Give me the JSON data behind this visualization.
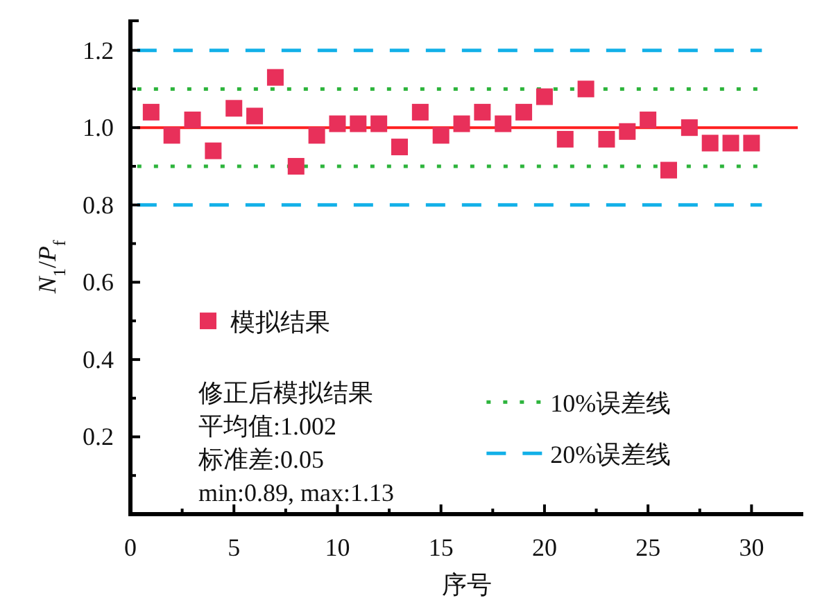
{
  "chart_data": {
    "type": "scatter",
    "xlabel": "序号",
    "ylabel": "*N*$_{1}$/*P*$_{f}$",
    "x": [
      1,
      2,
      3,
      4,
      5,
      6,
      7,
      8,
      9,
      10,
      11,
      12,
      13,
      14,
      15,
      16,
      17,
      18,
      19,
      20,
      21,
      22,
      23,
      24,
      25,
      26,
      27,
      28,
      29,
      30
    ],
    "series": [
      {
        "name": "模拟结果",
        "color": "#e8305a",
        "marker": "square",
        "values": [
          1.04,
          0.98,
          1.02,
          0.94,
          1.05,
          1.03,
          1.13,
          0.9,
          0.98,
          1.01,
          1.01,
          1.01,
          0.95,
          1.04,
          0.98,
          1.01,
          1.04,
          1.01,
          1.04,
          1.08,
          0.97,
          1.1,
          0.97,
          0.99,
          1.02,
          0.89,
          1.0,
          0.96,
          0.96,
          0.96
        ]
      }
    ],
    "xlim": [
      0,
      32.5
    ],
    "ylim": [
      0,
      1.28
    ],
    "xticks": [
      0,
      5,
      10,
      15,
      20,
      25,
      30
    ],
    "yticks": [
      0.2,
      0.4,
      0.6,
      0.8,
      {
        "value": 1,
        "label": "1.0"
      },
      1.2
    ],
    "ref_lines": [
      {
        "axis": "y",
        "value": 1.0,
        "color": "#ff2020",
        "line_style": "solid"
      },
      {
        "axis": "y",
        "value": 1.1,
        "color": "#2db43c",
        "line_style": "dotted",
        "label": "10%误差线"
      },
      {
        "axis": "y",
        "value": 0.9,
        "color": "#2db43c",
        "line_style": "dotted"
      },
      {
        "axis": "y",
        "value": 1.2,
        "color": "#12b0e8",
        "line_style": "dashed",
        "label": "20%误差线"
      },
      {
        "axis": "y",
        "value": 0.8,
        "color": "#12b0e8",
        "line_style": "dashed"
      }
    ],
    "annotations": [
      "修正后模拟结果",
      "平均值:1.002",
      "标准差:0.05",
      "min:0.89, max:1.13"
    ],
    "legend": "bottom left",
    "grid": false
  }
}
